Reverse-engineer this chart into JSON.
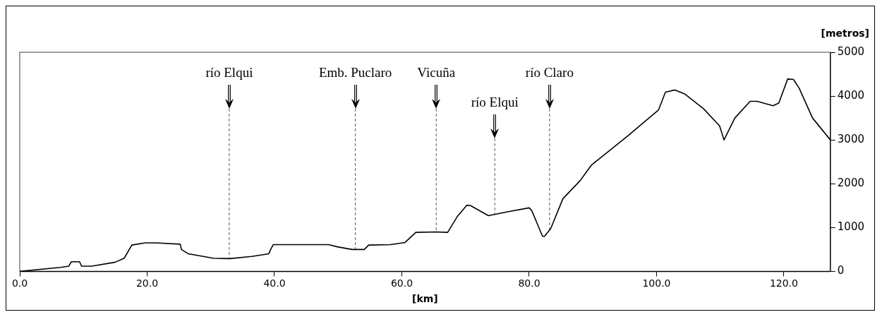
{
  "chart_data": {
    "type": "line",
    "xlabel": "[km]",
    "ylabel": "[metros]",
    "x": [
      0,
      6.4,
      7.7,
      8.1,
      9.4,
      9.7,
      11.3,
      15.0,
      16.4,
      17.6,
      19.7,
      21.4,
      25.2,
      25.4,
      26.5,
      30.4,
      32.9,
      36.4,
      39.1,
      39.4,
      39.8,
      42.8,
      48.5,
      49.9,
      52.2,
      54.1,
      54.8,
      58.2,
      60.5,
      62.2,
      65.4,
      67.2,
      68.7,
      70.2,
      70.8,
      73.6,
      76.6,
      80.0,
      80.4,
      82.1,
      82.4,
      83.4,
      85.3,
      88.0,
      89.8,
      95.4,
      100.3,
      101.4,
      102.9,
      104.4,
      107.4,
      109.9,
      110.6,
      112.3,
      114.7,
      115.8,
      118.3,
      119.2,
      120.6,
      121.5,
      122.4,
      124.5,
      127.3
    ],
    "series": [
      {
        "color": "#000000",
        "values": [
          0,
          90,
          120,
          220,
          220,
          120,
          120,
          210,
          300,
          600,
          650,
          650,
          620,
          500,
          400,
          300,
          290,
          340,
          400,
          500,
          610,
          610,
          610,
          560,
          500,
          500,
          600,
          610,
          660,
          890,
          900,
          890,
          1250,
          1510,
          1500,
          1270,
          1360,
          1450,
          1390,
          800,
          800,
          980,
          1660,
          2070,
          2430,
          3080,
          3680,
          4090,
          4140,
          4050,
          3710,
          3320,
          3000,
          3500,
          3880,
          3880,
          3780,
          3840,
          4390,
          4380,
          4180,
          3500,
          3000
        ]
      }
    ],
    "xlim": [
      0,
      127.3
    ],
    "xticks": [
      {
        "value": 0,
        "label": "0.0"
      },
      {
        "value": 20,
        "label": "20.0"
      },
      {
        "value": 40,
        "label": "40.0"
      },
      {
        "value": 60,
        "label": "60.0"
      },
      {
        "value": 80,
        "label": "80.0"
      },
      {
        "value": 100,
        "label": "100.0"
      },
      {
        "value": 120,
        "label": "120.0"
      }
    ],
    "ylim": [
      0,
      5000
    ],
    "yticks": [
      0,
      1000,
      2000,
      3000,
      4000,
      5000
    ],
    "ref_lines": [
      {
        "axis": "x",
        "value": 32.9,
        "label": "río Elqui",
        "line_style": "dashed"
      },
      {
        "axis": "x",
        "value": 52.7,
        "label": "Emb. Puclaro",
        "line_style": "dashed"
      },
      {
        "axis": "x",
        "value": 65.4,
        "label": "Vicuña",
        "line_style": "dashed"
      },
      {
        "axis": "x",
        "value": 74.6,
        "label": "río Elqui",
        "line_style": "dashed"
      },
      {
        "axis": "x",
        "value": 83.2,
        "label": "río Claro",
        "line_style": "dashed"
      }
    ]
  }
}
